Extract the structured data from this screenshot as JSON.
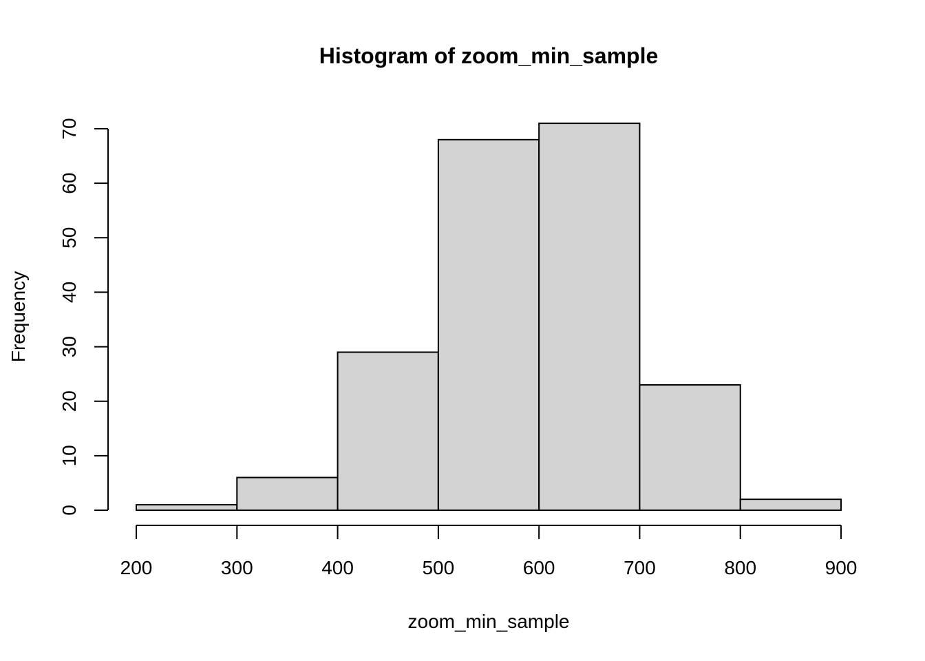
{
  "chart_data": {
    "type": "bar",
    "title": "Histogram of zoom_min_sample",
    "xlabel": "zoom_min_sample",
    "ylabel": "Frequency",
    "bin_edges": [
      200,
      300,
      400,
      500,
      600,
      700,
      800,
      900
    ],
    "values": [
      1,
      6,
      29,
      68,
      71,
      23,
      2
    ],
    "xlim": [
      200,
      900
    ],
    "ylim": [
      0,
      70
    ],
    "x_ticks": [
      "200",
      "300",
      "400",
      "500",
      "600",
      "700",
      "800",
      "900"
    ],
    "y_ticks": [
      "0",
      "10",
      "20",
      "30",
      "40",
      "50",
      "60",
      "70"
    ],
    "bar_color": "#d3d3d3",
    "border_color": "#000000",
    "grid": false,
    "legend": "none"
  }
}
